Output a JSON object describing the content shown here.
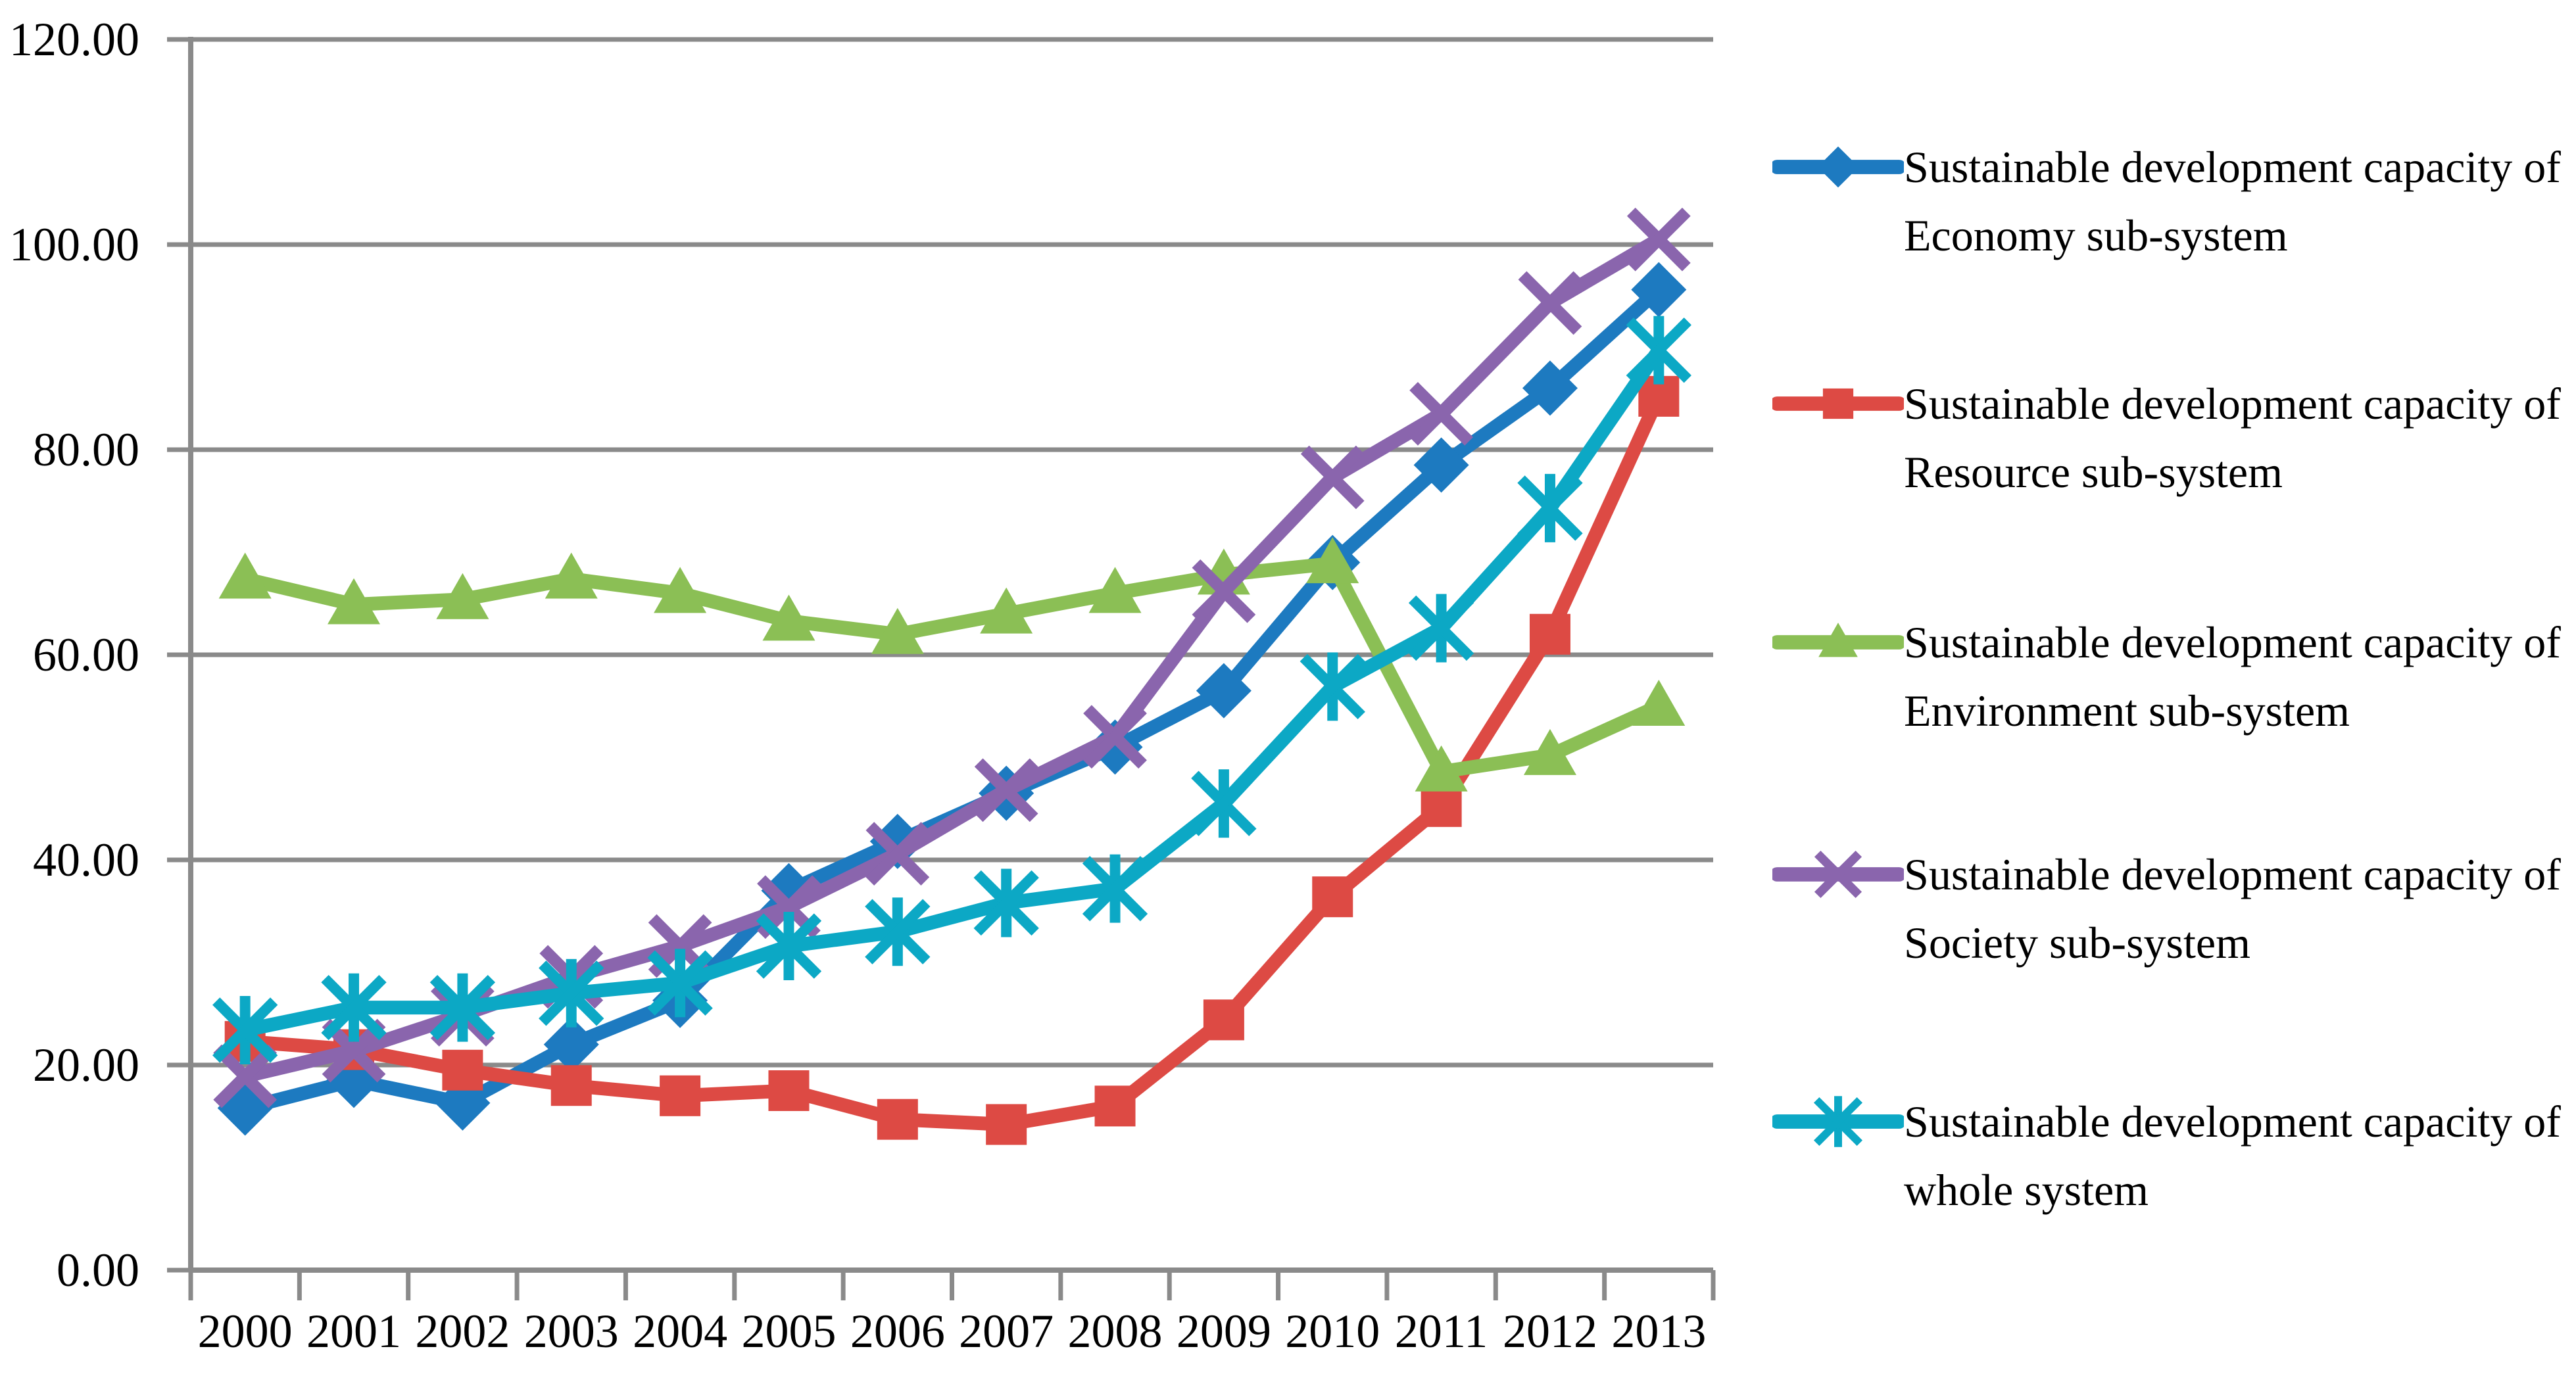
{
  "chart_data": {
    "type": "line",
    "title": "",
    "x": {
      "label": "",
      "categories": [
        "2000",
        "2001",
        "2002",
        "2003",
        "2004",
        "2005",
        "2006",
        "2007",
        "2008",
        "2009",
        "2010",
        "2011",
        "2012",
        "2013"
      ]
    },
    "y": {
      "label": "",
      "min": 0,
      "max": 120,
      "tick_step": 20,
      "tick_labels": [
        "0.00",
        "20.00",
        "40.00",
        "60.00",
        "80.00",
        "100.00",
        "120.00"
      ]
    },
    "grid": "horizontal",
    "legend_position": "right",
    "series": [
      {
        "name": "Sustainable development capacity of Economy sub-system",
        "legend_lines": [
          "Sustainable development capacity of",
          "Economy sub-system"
        ],
        "marker": "diamond",
        "color": "#1d7ac0",
        "values": [
          15.8,
          18.5,
          16.3,
          22.0,
          26.3,
          37.0,
          41.8,
          46.5,
          51.0,
          56.5,
          69.0,
          78.5,
          86.0,
          95.6
        ]
      },
      {
        "name": "Sustainable development capacity of Resource sub-system",
        "legend_lines": [
          "Sustainable development capacity of",
          "Resource sub-system"
        ],
        "marker": "square",
        "color": "#dd4a44",
        "values": [
          22.3,
          21.5,
          19.5,
          18.0,
          17.0,
          17.5,
          14.7,
          14.2,
          16.0,
          24.4,
          36.4,
          45.2,
          62.0,
          85.2
        ]
      },
      {
        "name": "Sustainable development capacity of Environment sub-system",
        "legend_lines": [
          "Sustainable development capacity of",
          "Environment sub-system"
        ],
        "marker": "triangle",
        "color": "#8bbf55",
        "values": [
          67.4,
          64.9,
          65.4,
          67.4,
          66.0,
          63.3,
          62.0,
          64.0,
          66.0,
          67.8,
          68.9,
          48.6,
          50.2,
          55.0
        ]
      },
      {
        "name": "Sustainable development capacity of Society sub-system",
        "legend_lines": [
          "Sustainable development capacity of",
          "Society sub-system"
        ],
        "marker": "x",
        "color": "#8a65ad",
        "values": [
          18.9,
          21.4,
          24.9,
          28.6,
          31.6,
          35.4,
          40.6,
          46.8,
          52.0,
          66.2,
          77.3,
          83.5,
          94.3,
          100.5
        ]
      },
      {
        "name": "Sustainable development capacity of whole system",
        "legend_lines": [
          "Sustainable development capacity of",
          "whole system"
        ],
        "marker": "asterisk",
        "color": "#0ca8c5",
        "values": [
          23.4,
          25.6,
          25.6,
          27.0,
          28.0,
          31.6,
          33.0,
          35.8,
          37.2,
          45.5,
          56.9,
          62.6,
          74.3,
          89.7
        ]
      }
    ]
  },
  "colors": {
    "gridline": "#8a8a8a",
    "axis": "#8a8a8a",
    "background": "#ffffff",
    "text": "#000000"
  }
}
